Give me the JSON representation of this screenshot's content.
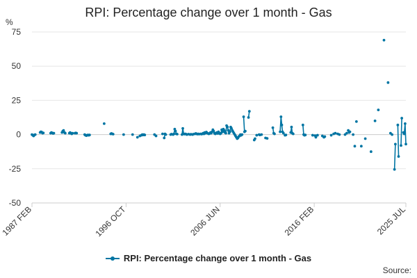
{
  "chart_data": {
    "type": "line",
    "title": "RPI: Percentage change over 1 month - Gas",
    "ylabel": "%",
    "xlabel": "",
    "ylim": [
      -50,
      75
    ],
    "yticks": [
      75,
      50,
      25,
      0,
      -25,
      -50
    ],
    "xlim": [
      1987.083,
      2025.5
    ],
    "xticks": [
      {
        "label": "1987 FEB",
        "value": 1987.083
      },
      {
        "label": "1996 OCT",
        "value": 1996.75
      },
      {
        "label": "2006 JUN",
        "value": 2006.417
      },
      {
        "label": "2016 FEB",
        "value": 2016.083
      },
      {
        "label": "2025 JUL",
        "value": 2025.5
      }
    ],
    "grid": true,
    "legend_position": "bottom",
    "series": [
      {
        "name": "RPI: Percentage change over 1 month - Gas",
        "color": "#0075A3",
        "points": [
          [
            1987.08,
            0.0
          ],
          [
            1987.17,
            -0.5
          ],
          [
            1987.25,
            -1.0
          ],
          [
            1987.33,
            -0.3
          ],
          [
            1987.42,
            0.0
          ],
          [
            1987.92,
            1.5
          ],
          [
            1988.0,
            2.0
          ],
          [
            1988.08,
            1.8
          ],
          [
            1988.17,
            1.0
          ],
          [
            1988.25,
            1.2
          ],
          [
            1989.0,
            1.0
          ],
          [
            1989.08,
            1.5
          ],
          [
            1989.17,
            1.2
          ],
          [
            1989.25,
            0.8
          ],
          [
            1989.33,
            1.0
          ],
          [
            1990.17,
            1.5
          ],
          [
            1990.25,
            2.5
          ],
          [
            1990.33,
            3.0
          ],
          [
            1990.42,
            1.5
          ],
          [
            1990.5,
            1.0
          ],
          [
            1990.92,
            1.0
          ],
          [
            1991.0,
            1.5
          ],
          [
            1991.08,
            1.0
          ],
          [
            1991.17,
            0.5
          ],
          [
            1991.25,
            1.0
          ],
          [
            1991.5,
            1.0
          ],
          [
            1991.58,
            1.2
          ],
          [
            1991.67,
            1.0
          ],
          [
            1992.5,
            0.0
          ],
          [
            1992.58,
            -0.5
          ],
          [
            1992.67,
            -0.8
          ],
          [
            1992.75,
            -0.5
          ],
          [
            1992.83,
            -0.3
          ],
          [
            1992.92,
            -0.5
          ],
          [
            1993.0,
            -0.3
          ],
          [
            1994.5,
            8.0
          ],
          [
            1995.17,
            0.5
          ],
          [
            1995.25,
            0.8
          ],
          [
            1995.33,
            0.5
          ],
          [
            1995.42,
            0.3
          ],
          [
            1996.5,
            0.0
          ],
          [
            1997.42,
            0.0
          ],
          [
            1997.92,
            -2.0
          ],
          [
            1998.17,
            -1.0
          ],
          [
            1998.33,
            -0.5
          ],
          [
            1998.42,
            0.0
          ],
          [
            1998.5,
            -0.3
          ],
          [
            1998.58,
            0.0
          ],
          [
            1998.67,
            -0.3
          ],
          [
            1999.67,
            0.0
          ],
          [
            1999.83,
            -1.0
          ],
          [
            2000.5,
            0.5
          ],
          [
            2000.67,
            -2.5
          ],
          [
            2000.75,
            0.5
          ],
          [
            2000.83,
            0.0
          ],
          [
            2001.33,
            0.0
          ],
          [
            2001.42,
            0.3
          ],
          [
            2001.58,
            0.0
          ],
          [
            2001.67,
            0.5
          ],
          [
            2001.75,
            4.0
          ],
          [
            2001.83,
            2.5
          ],
          [
            2001.92,
            0.5
          ],
          [
            2002.0,
            0.3
          ],
          [
            2002.5,
            0.0
          ],
          [
            2002.58,
            4.5
          ],
          [
            2002.67,
            0.5
          ],
          [
            2002.75,
            0.3
          ],
          [
            2002.83,
            0.5
          ],
          [
            2002.92,
            0.3
          ],
          [
            2003.0,
            0.0
          ],
          [
            2003.17,
            0.3
          ],
          [
            2003.33,
            0.0
          ],
          [
            2003.42,
            0.2
          ],
          [
            2003.58,
            0.0
          ],
          [
            2003.67,
            0.3
          ],
          [
            2003.83,
            0.5
          ],
          [
            2003.92,
            0.8
          ],
          [
            2004.0,
            0.5
          ],
          [
            2004.08,
            0.3
          ],
          [
            2004.17,
            0.5
          ],
          [
            2004.25,
            0.3
          ],
          [
            2004.42,
            0.5
          ],
          [
            2004.5,
            0.3
          ],
          [
            2004.58,
            0.5
          ],
          [
            2004.67,
            1.0
          ],
          [
            2004.75,
            0.5
          ],
          [
            2004.83,
            1.5
          ],
          [
            2004.92,
            1.0
          ],
          [
            2005.0,
            1.8
          ],
          [
            2005.08,
            1.2
          ],
          [
            2005.17,
            0.8
          ],
          [
            2005.25,
            0.5
          ],
          [
            2005.33,
            0.8
          ],
          [
            2005.42,
            1.5
          ],
          [
            2005.5,
            1.0
          ],
          [
            2005.58,
            2.0
          ],
          [
            2005.67,
            3.5
          ],
          [
            2005.75,
            2.5
          ],
          [
            2005.83,
            1.0
          ],
          [
            2005.92,
            0.5
          ],
          [
            2006.0,
            1.0
          ],
          [
            2006.08,
            1.5
          ],
          [
            2006.17,
            0.8
          ],
          [
            2006.25,
            2.0
          ],
          [
            2006.33,
            1.0
          ],
          [
            2006.42,
            0.5
          ],
          [
            2006.5,
            1.0
          ],
          [
            2006.58,
            3.5
          ],
          [
            2006.67,
            2.0
          ],
          [
            2006.75,
            4.0
          ],
          [
            2006.83,
            3.0
          ],
          [
            2006.92,
            1.5
          ],
          [
            2007.0,
            1.0
          ],
          [
            2007.08,
            6.5
          ],
          [
            2007.17,
            5.5
          ],
          [
            2007.25,
            3.0
          ],
          [
            2007.33,
            1.0
          ],
          [
            2007.42,
            2.0
          ],
          [
            2007.5,
            5.5
          ],
          [
            2007.58,
            4.5
          ],
          [
            2007.67,
            3.0
          ],
          [
            2007.75,
            2.0
          ],
          [
            2007.83,
            1.0
          ],
          [
            2007.92,
            0.0
          ],
          [
            2008.0,
            -1.0
          ],
          [
            2008.08,
            -2.0
          ],
          [
            2008.17,
            -3.0
          ],
          [
            2008.25,
            -2.5
          ],
          [
            2008.33,
            -1.5
          ],
          [
            2008.42,
            -1.0
          ],
          [
            2008.5,
            0.0
          ],
          [
            2008.58,
            -0.5
          ],
          [
            2008.67,
            0.0
          ],
          [
            2008.83,
            13.0
          ],
          [
            2008.92,
            2.0
          ],
          [
            2009.0,
            2.5
          ],
          [
            2009.33,
            12.5
          ],
          [
            2009.42,
            17.0
          ],
          [
            2009.92,
            -4.0
          ],
          [
            2010.0,
            -3.0
          ],
          [
            2010.17,
            -0.5
          ],
          [
            2010.42,
            0.0
          ],
          [
            2010.5,
            -0.3
          ],
          [
            2010.67,
            0.0
          ],
          [
            2011.08,
            -2.5
          ],
          [
            2011.25,
            -2.8
          ],
          [
            2011.83,
            5.0
          ],
          [
            2011.92,
            1.0
          ],
          [
            2012.0,
            0.5
          ],
          [
            2012.58,
            2.0
          ],
          [
            2012.67,
            13.0
          ],
          [
            2012.75,
            7.0
          ],
          [
            2012.83,
            2.0
          ],
          [
            2012.92,
            1.0
          ],
          [
            2013.08,
            -0.5
          ],
          [
            2013.17,
            -0.3
          ],
          [
            2013.67,
            1.5
          ],
          [
            2013.75,
            5.5
          ],
          [
            2013.83,
            1.0
          ],
          [
            2013.92,
            0.5
          ],
          [
            2014.92,
            7.0
          ],
          [
            2015.0,
            0.0
          ],
          [
            2015.08,
            -0.5
          ],
          [
            2015.17,
            -0.3
          ],
          [
            2015.92,
            -0.5
          ],
          [
            2016.17,
            -0.8
          ],
          [
            2016.25,
            -2.0
          ],
          [
            2016.42,
            -0.5
          ],
          [
            2016.92,
            -1.0
          ],
          [
            2017.08,
            -2.0
          ],
          [
            2017.17,
            -1.5
          ],
          [
            2017.83,
            -0.5
          ],
          [
            2018.08,
            0.5
          ],
          [
            2018.25,
            1.0
          ],
          [
            2018.5,
            0.5
          ],
          [
            2018.67,
            0.0
          ],
          [
            2019.25,
            0.0
          ],
          [
            2019.42,
            1.0
          ],
          [
            2019.58,
            3.0
          ],
          [
            2019.67,
            1.5
          ],
          [
            2019.75,
            2.0
          ],
          [
            2020.08,
            0.0
          ],
          [
            2020.25,
            -8.5
          ],
          [
            2020.42,
            9.5
          ],
          [
            2020.92,
            -8.5
          ],
          [
            2021.33,
            -3.0
          ],
          [
            2021.92,
            -12.5
          ],
          [
            2022.33,
            10.0
          ],
          [
            2022.67,
            18.0
          ],
          [
            2023.25,
            69.0
          ],
          [
            2023.67,
            38.0
          ],
          [
            2023.92,
            1.0
          ],
          [
            2024.08,
            0.0
          ],
          [
            2024.33,
            -25.5
          ],
          [
            2024.42,
            -7.0
          ],
          [
            2024.67,
            7.0
          ],
          [
            2024.75,
            -16.0
          ],
          [
            2025.0,
            -8.0
          ],
          [
            2025.08,
            12.0
          ],
          [
            2025.25,
            1.5
          ],
          [
            2025.33,
            0.5
          ],
          [
            2025.42,
            8.0
          ],
          [
            2025.5,
            -7.0
          ]
        ]
      }
    ]
  },
  "footer": {
    "source_label": "Source:"
  }
}
